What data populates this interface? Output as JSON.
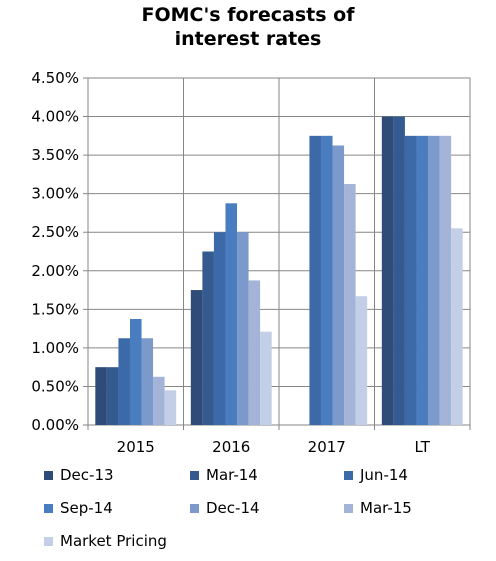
{
  "chart_data": {
    "type": "bar",
    "title": [
      "FOMC's forecasts of",
      "interest rates"
    ],
    "categories": [
      "2015",
      "2016",
      "2017",
      "LT"
    ],
    "ylim": [
      0,
      0.045
    ],
    "yticks": [
      "0.00%",
      "0.50%",
      "1.00%",
      "1.50%",
      "2.00%",
      "2.50%",
      "3.00%",
      "3.50%",
      "4.00%",
      "4.50%"
    ],
    "grid": true,
    "legend_position": "bottom",
    "series": [
      {
        "name": "Dec-13",
        "color": "#2f4b78",
        "values": [
          0.0075,
          0.0175,
          null,
          0.04
        ]
      },
      {
        "name": "Mar-14",
        "color": "#355a90",
        "values": [
          0.0075,
          0.0225,
          null,
          0.04
        ]
      },
      {
        "name": "Jun-14",
        "color": "#3c69a8",
        "values": [
          0.01125,
          0.025,
          0.0375,
          0.0375
        ]
      },
      {
        "name": "Sep-14",
        "color": "#4a7cc0",
        "values": [
          0.01375,
          0.02875,
          0.0375,
          0.0375
        ]
      },
      {
        "name": "Dec-14",
        "color": "#7b9acb",
        "values": [
          0.01125,
          0.025,
          0.03625,
          0.0375
        ]
      },
      {
        "name": "Mar-15",
        "color": "#a3b4d8",
        "values": [
          0.00625,
          0.01875,
          0.03125,
          0.0375
        ]
      },
      {
        "name": "Market Pricing",
        "color": "#c3cfe6",
        "values": [
          0.0045,
          0.0121,
          0.0167,
          0.0255
        ]
      }
    ]
  }
}
